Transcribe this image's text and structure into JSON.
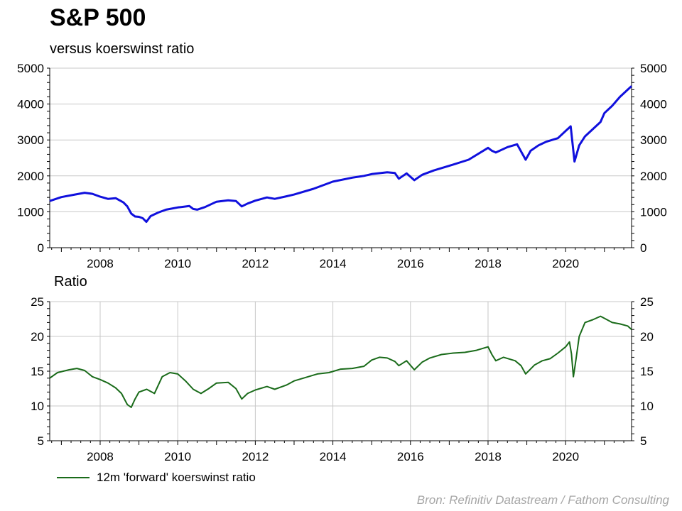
{
  "title": "S&P 500",
  "subtitle": "versus koerswinst ratio",
  "source": "Bron: Refinitiv Datastream / Fathom Consulting",
  "colors": {
    "sp500": "#1010dd",
    "ratio": "#1a6b1a",
    "grid": "#c8c8c8"
  },
  "chart_data": [
    {
      "type": "line",
      "title": "S&P 500",
      "subtitle": "versus koerswinst ratio",
      "xlim": [
        2006.7,
        2021.7
      ],
      "ylim": [
        0,
        5000
      ],
      "yticks": [
        0,
        1000,
        2000,
        3000,
        4000,
        5000
      ],
      "xticks": [
        2008,
        2010,
        2012,
        2014,
        2016,
        2018,
        2020
      ],
      "grid": true,
      "legend": "none",
      "series": [
        {
          "x": [
            2006.7,
            2007.0,
            2007.3,
            2007.6,
            2007.8,
            2008.0,
            2008.2,
            2008.4,
            2008.6,
            2008.7,
            2008.8,
            2008.9,
            2009.0,
            2009.1,
            2009.19,
            2009.3,
            2009.5,
            2009.7,
            2010.0,
            2010.3,
            2010.4,
            2010.5,
            2010.7,
            2011.0,
            2011.3,
            2011.5,
            2011.65,
            2011.8,
            2012.0,
            2012.3,
            2012.5,
            2012.8,
            2013.0,
            2013.5,
            2014.0,
            2014.5,
            2014.8,
            2015.0,
            2015.4,
            2015.6,
            2015.7,
            2015.9,
            2016.1,
            2016.3,
            2016.6,
            2017.0,
            2017.5,
            2018.0,
            2018.1,
            2018.2,
            2018.5,
            2018.75,
            2018.97,
            2019.1,
            2019.3,
            2019.5,
            2019.8,
            2020.0,
            2020.13,
            2020.23,
            2020.35,
            2020.5,
            2020.7,
            2020.9,
            2021.0,
            2021.2,
            2021.4,
            2021.6,
            2021.7
          ],
          "values": [
            1300,
            1410,
            1470,
            1530,
            1500,
            1420,
            1360,
            1380,
            1260,
            1150,
            950,
            870,
            860,
            820,
            720,
            880,
            980,
            1060,
            1120,
            1160,
            1080,
            1060,
            1130,
            1280,
            1320,
            1300,
            1150,
            1230,
            1310,
            1400,
            1360,
            1430,
            1480,
            1640,
            1840,
            1950,
            2000,
            2050,
            2100,
            2080,
            1920,
            2070,
            1880,
            2030,
            2150,
            2280,
            2450,
            2780,
            2700,
            2650,
            2800,
            2880,
            2450,
            2700,
            2850,
            2950,
            3050,
            3250,
            3380,
            2400,
            2850,
            3100,
            3300,
            3500,
            3750,
            3950,
            4200,
            4400,
            4500
          ]
        }
      ]
    },
    {
      "type": "line",
      "title": "Ratio",
      "xlim": [
        2006.7,
        2021.7
      ],
      "ylim": [
        5,
        25
      ],
      "yticks": [
        5,
        10,
        15,
        20,
        25
      ],
      "xticks": [
        2008,
        2010,
        2012,
        2014,
        2016,
        2018,
        2020
      ],
      "grid": true,
      "legend": "bottom-left",
      "series": [
        {
          "name": "12m 'forward'  koerswinst ratio",
          "x": [
            2006.7,
            2006.9,
            2007.2,
            2007.4,
            2007.6,
            2007.8,
            2008.0,
            2008.2,
            2008.4,
            2008.55,
            2008.7,
            2008.8,
            2008.9,
            2009.0,
            2009.2,
            2009.4,
            2009.6,
            2009.8,
            2010.0,
            2010.2,
            2010.4,
            2010.6,
            2010.8,
            2011.0,
            2011.3,
            2011.5,
            2011.65,
            2011.8,
            2012.0,
            2012.3,
            2012.5,
            2012.8,
            2013.0,
            2013.3,
            2013.6,
            2013.9,
            2014.2,
            2014.5,
            2014.8,
            2015.0,
            2015.2,
            2015.4,
            2015.6,
            2015.7,
            2015.9,
            2016.1,
            2016.3,
            2016.5,
            2016.8,
            2017.1,
            2017.4,
            2017.7,
            2018.0,
            2018.1,
            2018.2,
            2018.4,
            2018.7,
            2018.85,
            2018.97,
            2019.2,
            2019.4,
            2019.6,
            2019.8,
            2020.0,
            2020.1,
            2020.15,
            2020.2,
            2020.25,
            2020.35,
            2020.5,
            2020.7,
            2020.9,
            2021.0,
            2021.2,
            2021.4,
            2021.6,
            2021.7
          ],
          "values": [
            14.0,
            14.8,
            15.2,
            15.4,
            15.1,
            14.2,
            13.8,
            13.3,
            12.6,
            11.8,
            10.2,
            9.8,
            11.0,
            12.0,
            12.4,
            11.8,
            14.2,
            14.8,
            14.6,
            13.6,
            12.4,
            11.8,
            12.5,
            13.3,
            13.4,
            12.5,
            11.0,
            11.8,
            12.3,
            12.8,
            12.4,
            13.0,
            13.6,
            14.1,
            14.6,
            14.8,
            15.3,
            15.4,
            15.7,
            16.6,
            17.0,
            16.9,
            16.4,
            15.8,
            16.5,
            15.2,
            16.3,
            16.9,
            17.4,
            17.6,
            17.7,
            18.0,
            18.5,
            17.4,
            16.5,
            17.0,
            16.5,
            15.8,
            14.6,
            15.9,
            16.5,
            16.8,
            17.6,
            18.5,
            19.2,
            17.5,
            14.2,
            16.0,
            20.0,
            22.0,
            22.4,
            22.9,
            22.6,
            22.0,
            21.8,
            21.5,
            21.0
          ]
        }
      ]
    }
  ]
}
